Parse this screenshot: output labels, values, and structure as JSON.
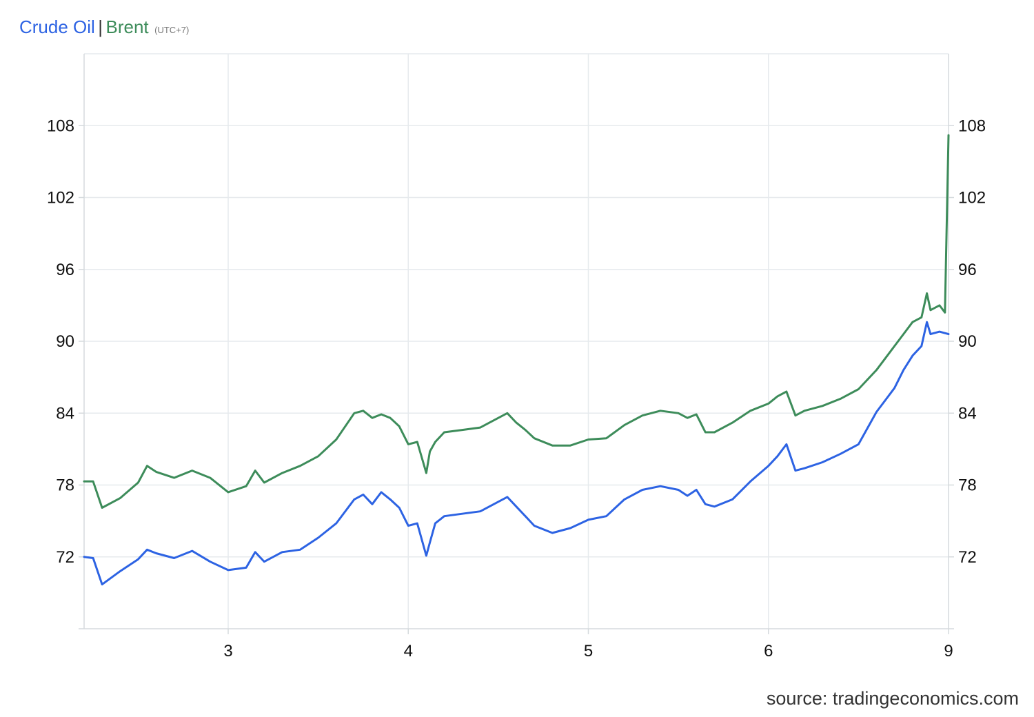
{
  "header": {
    "series_a": "Crude Oil",
    "separator": "|",
    "series_b": "Brent",
    "timezone": "(UTC+7)"
  },
  "source": "source: tradingeconomics.com",
  "colors": {
    "crude": "#2d63e3",
    "brent": "#3d8c5a",
    "grid": "#e6eaed",
    "axis": "#d5dadd"
  },
  "chart_data": {
    "type": "line",
    "title": "",
    "xlabel": "",
    "ylabel": "",
    "x_ticks": [
      "3",
      "4",
      "5",
      "6",
      "9"
    ],
    "y_ticks": [
      72,
      78,
      84,
      90,
      96,
      102,
      108
    ],
    "ylim": [
      66,
      114
    ],
    "grid": true,
    "legend": "top-left title",
    "series": [
      {
        "name": "Crude Oil",
        "x": [
          2.2,
          2.25,
          2.3,
          2.4,
          2.5,
          2.55,
          2.6,
          2.7,
          2.8,
          2.9,
          3.0,
          3.1,
          3.15,
          3.2,
          3.3,
          3.4,
          3.5,
          3.6,
          3.7,
          3.75,
          3.8,
          3.85,
          3.9,
          3.95,
          4.0,
          4.05,
          4.1,
          4.12,
          4.15,
          4.2,
          4.3,
          4.4,
          4.5,
          4.55,
          4.6,
          4.65,
          4.7,
          4.8,
          4.9,
          5.0,
          5.1,
          5.2,
          5.3,
          5.4,
          5.5,
          5.55,
          5.6,
          5.65,
          5.7,
          5.8,
          5.9,
          6.0,
          6.05,
          6.1,
          6.15,
          6.2,
          6.3,
          6.4,
          6.5,
          6.6,
          6.65,
          6.7,
          6.75,
          6.8,
          6.85,
          6.88,
          6.9,
          6.95,
          7.0
        ],
        "values": [
          72.0,
          71.9,
          69.7,
          70.8,
          71.8,
          72.6,
          72.3,
          71.9,
          72.5,
          71.6,
          70.9,
          71.1,
          72.4,
          71.6,
          72.4,
          72.6,
          73.6,
          74.8,
          76.8,
          77.2,
          76.4,
          77.4,
          76.8,
          76.1,
          74.6,
          74.8,
          72.1,
          73.2,
          74.8,
          75.4,
          75.6,
          75.8,
          76.6,
          77.0,
          76.2,
          75.4,
          74.6,
          74.0,
          74.4,
          75.1,
          75.4,
          76.8,
          77.6,
          77.9,
          77.6,
          77.1,
          77.6,
          76.4,
          76.2,
          76.8,
          78.3,
          79.6,
          80.4,
          81.4,
          79.2,
          79.4,
          79.9,
          80.6,
          81.4,
          84.1,
          85.1,
          86.1,
          87.6,
          88.8,
          89.6,
          91.6,
          90.6,
          90.8,
          90.6
        ]
      },
      {
        "name": "Brent",
        "x": [
          2.2,
          2.25,
          2.3,
          2.4,
          2.5,
          2.55,
          2.6,
          2.7,
          2.8,
          2.9,
          3.0,
          3.1,
          3.15,
          3.2,
          3.3,
          3.4,
          3.5,
          3.6,
          3.7,
          3.75,
          3.8,
          3.85,
          3.9,
          3.95,
          4.0,
          4.05,
          4.1,
          4.12,
          4.15,
          4.2,
          4.3,
          4.4,
          4.5,
          4.55,
          4.6,
          4.65,
          4.7,
          4.8,
          4.9,
          5.0,
          5.1,
          5.2,
          5.3,
          5.4,
          5.5,
          5.55,
          5.6,
          5.65,
          5.7,
          5.8,
          5.9,
          6.0,
          6.05,
          6.1,
          6.15,
          6.2,
          6.3,
          6.4,
          6.5,
          6.6,
          6.65,
          6.7,
          6.75,
          6.8,
          6.85,
          6.88,
          6.9,
          6.95,
          6.98,
          7.0
        ],
        "values": [
          78.3,
          78.3,
          76.1,
          76.9,
          78.2,
          79.6,
          79.1,
          78.6,
          79.2,
          78.6,
          77.4,
          77.9,
          79.2,
          78.2,
          79.0,
          79.6,
          80.4,
          81.8,
          84.0,
          84.2,
          83.6,
          83.9,
          83.6,
          82.9,
          81.4,
          81.6,
          79.0,
          80.8,
          81.6,
          82.4,
          82.6,
          82.8,
          83.6,
          84.0,
          83.2,
          82.6,
          81.9,
          81.3,
          81.3,
          81.8,
          81.9,
          83.0,
          83.8,
          84.2,
          84.0,
          83.6,
          83.9,
          82.4,
          82.4,
          83.2,
          84.2,
          84.8,
          85.4,
          85.8,
          83.8,
          84.2,
          84.6,
          85.2,
          86.0,
          87.6,
          88.6,
          89.6,
          90.6,
          91.6,
          92.0,
          94.0,
          92.6,
          93.0,
          92.4,
          107.2
        ]
      }
    ]
  }
}
